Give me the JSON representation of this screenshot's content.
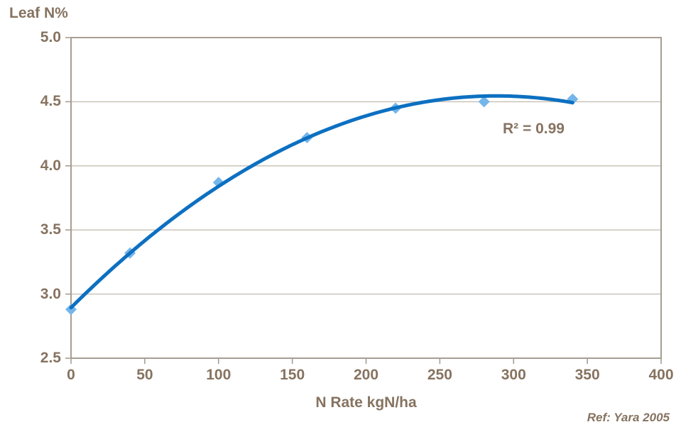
{
  "chart_data": {
    "type": "scatter",
    "title": "Leaf N%",
    "xlabel": "N Rate kgN/ha",
    "ylabel": "Leaf N%",
    "x": [
      0,
      40,
      100,
      160,
      220,
      280,
      340
    ],
    "y": [
      2.88,
      3.32,
      3.87,
      4.22,
      4.45,
      4.5,
      4.52
    ],
    "xlim": [
      0,
      400
    ],
    "ylim": [
      2.5,
      5.0
    ],
    "x_ticks": [
      "0",
      "50",
      "100",
      "150",
      "200",
      "250",
      "300",
      "350",
      "400"
    ],
    "y_ticks": [
      "2.5",
      "3.0",
      "3.5",
      "4.0",
      "4.5",
      "5.0"
    ],
    "grid": "horizontal",
    "legend": "none",
    "marker": "diamond",
    "trendline": {
      "type": "polynomial",
      "order": 2
    },
    "annotation": {
      "text": "R² = 0.99"
    },
    "source_note": "Ref: Yara 2005",
    "colors": {
      "line": "#0d70c1",
      "marker": "#74b6ea",
      "axis": "#a79e92",
      "gridline": "#c7bfb2",
      "text": "#867360"
    }
  }
}
